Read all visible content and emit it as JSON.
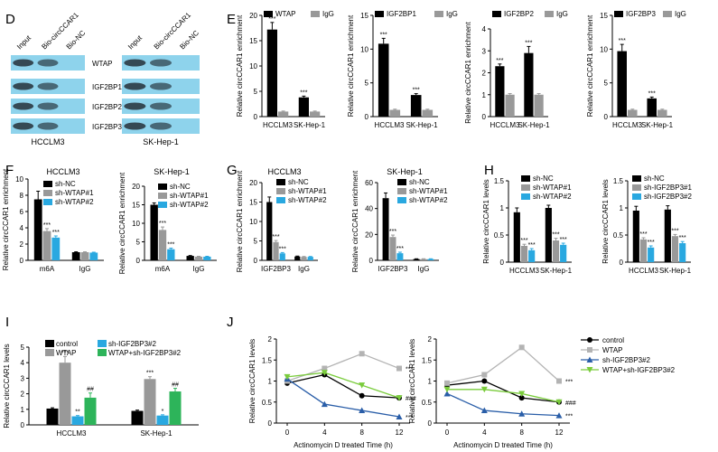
{
  "panels": [
    {
      "id": "D",
      "label": "D"
    },
    {
      "id": "E",
      "label": "E"
    },
    {
      "id": "F",
      "label": "F"
    },
    {
      "id": "G",
      "label": "G"
    },
    {
      "id": "H",
      "label": "H"
    },
    {
      "id": "I",
      "label": "I"
    },
    {
      "id": "J",
      "label": "J"
    }
  ],
  "western_blot": {
    "panel": "D",
    "blocks": [
      {
        "cell_line": "HCCLM3",
        "lanes": [
          "Input",
          "Bio-circCCAR1",
          "Bio-NC"
        ]
      },
      {
        "cell_line": "SK-Hep-1",
        "lanes": [
          "Input",
          "Bio-circCCAR1",
          "Bio-NC"
        ]
      }
    ],
    "proteins": [
      "WTAP",
      "IGF2BP1",
      "IGF2BP2",
      "IGF2BP3"
    ],
    "band_color": "#8ed3ec",
    "band_present": [
      [
        [
          true,
          true,
          false
        ],
        [
          true,
          true,
          false
        ]
      ],
      [
        [
          true,
          true,
          false
        ],
        [
          true,
          true,
          false
        ]
      ],
      [
        [
          true,
          true,
          false
        ],
        [
          true,
          true,
          false
        ]
      ],
      [
        [
          true,
          true,
          false
        ],
        [
          true,
          true,
          false
        ]
      ]
    ]
  },
  "colors": {
    "black": "#000000",
    "gray": "#999999",
    "light_gray": "#b3b3b3",
    "blue": "#29a8e0",
    "green": "#2db45a",
    "lime": "#7acc3c",
    "steel": "#2a5ea8"
  },
  "chart_data": [
    {
      "panel": "E",
      "type": "bar",
      "ylabel": "Relative circCCAR1 enrichment",
      "categories": [
        "HCCLM3",
        "SK-Hep-1"
      ],
      "ylim": [
        0,
        20
      ],
      "yticks": [
        0,
        5,
        10,
        15,
        20
      ],
      "series": [
        {
          "name": "WTAP",
          "color": "#000000",
          "values": [
            17.2,
            3.8
          ],
          "errors": [
            1.4,
            0.25
          ],
          "sig": [
            "***",
            "***"
          ]
        },
        {
          "name": "IgG",
          "color": "#999999",
          "values": [
            1.0,
            1.0
          ],
          "errors": [
            0.1,
            0.1
          ],
          "sig": [
            "",
            ""
          ]
        }
      ]
    },
    {
      "panel": "E",
      "type": "bar",
      "ylabel": "Relative circCCAR1 enrichment",
      "categories": [
        "HCCLM3",
        "SK-Hep-1"
      ],
      "ylim": [
        0,
        15
      ],
      "yticks": [
        0,
        5,
        10,
        15
      ],
      "series": [
        {
          "name": "IGF2BP1",
          "color": "#000000",
          "values": [
            10.8,
            3.2
          ],
          "errors": [
            0.8,
            0.2
          ],
          "sig": [
            "***",
            "***"
          ]
        },
        {
          "name": "IgG",
          "color": "#999999",
          "values": [
            1.0,
            1.0
          ],
          "errors": [
            0.1,
            0.1
          ],
          "sig": [
            "",
            ""
          ]
        }
      ]
    },
    {
      "panel": "E",
      "type": "bar",
      "ylabel": "Relative circCCAR1 enrichment",
      "categories": [
        "HCCLM3",
        "SK-Hep-1"
      ],
      "ylim": [
        0,
        4
      ],
      "yticks": [
        0,
        1,
        2,
        3,
        4
      ],
      "series": [
        {
          "name": "IGF2BP2",
          "color": "#000000",
          "values": [
            2.3,
            2.9
          ],
          "errors": [
            0.1,
            0.3
          ],
          "sig": [
            "***",
            "***"
          ]
        },
        {
          "name": "IgG",
          "color": "#999999",
          "values": [
            1.0,
            1.0
          ],
          "errors": [
            0.05,
            0.05
          ],
          "sig": [
            "",
            ""
          ]
        }
      ]
    },
    {
      "panel": "E",
      "type": "bar",
      "ylabel": "Relative circCCAR1 enrichment",
      "categories": [
        "HCCLM3",
        "SK-Hep-1"
      ],
      "ylim": [
        0,
        15
      ],
      "yticks": [
        0,
        5,
        10,
        15
      ],
      "series": [
        {
          "name": "IGF2BP3",
          "color": "#000000",
          "values": [
            9.7,
            2.7
          ],
          "errors": [
            1.0,
            0.2
          ],
          "sig": [
            "***",
            "***"
          ]
        },
        {
          "name": "IgG",
          "color": "#999999",
          "values": [
            1.0,
            1.0
          ],
          "errors": [
            0.1,
            0.1
          ],
          "sig": [
            "",
            ""
          ]
        }
      ]
    },
    {
      "panel": "F",
      "type": "bar",
      "title": "HCCLM3",
      "ylabel": "Relative circCCAR1 enrichment",
      "categories": [
        "m6A",
        "IgG"
      ],
      "ylim": [
        0,
        10
      ],
      "yticks": [
        0,
        2,
        4,
        6,
        8,
        10
      ],
      "series": [
        {
          "name": "sh-NC",
          "color": "#000000",
          "values": [
            7.5,
            1.0
          ],
          "errors": [
            1.0,
            0.05
          ],
          "sig": [
            "",
            ""
          ]
        },
        {
          "name": "sh-WTAP#1",
          "color": "#999999",
          "values": [
            3.6,
            1.0
          ],
          "errors": [
            0.3,
            0.05
          ],
          "sig": [
            "***",
            ""
          ]
        },
        {
          "name": "sh-WTAP#2",
          "color": "#29a8e0",
          "values": [
            2.8,
            0.95
          ],
          "errors": [
            0.2,
            0.05
          ],
          "sig": [
            "***",
            ""
          ]
        }
      ]
    },
    {
      "panel": "F",
      "type": "bar",
      "title": "SK-Hep-1",
      "ylabel": "Relative circCCAR1 enrichment",
      "categories": [
        "m6A",
        "IgG"
      ],
      "ylim": [
        0,
        20
      ],
      "yticks": [
        0,
        5,
        10,
        15,
        20
      ],
      "series": [
        {
          "name": "sh-NC",
          "color": "#000000",
          "values": [
            15.0,
            1.2
          ],
          "errors": [
            0.5,
            0.1
          ],
          "sig": [
            "",
            ""
          ]
        },
        {
          "name": "sh-WTAP#1",
          "color": "#999999",
          "values": [
            8.2,
            1.0
          ],
          "errors": [
            0.8,
            0.1
          ],
          "sig": [
            "***",
            ""
          ]
        },
        {
          "name": "sh-WTAP#2",
          "color": "#29a8e0",
          "values": [
            3.0,
            1.0
          ],
          "errors": [
            0.3,
            0.1
          ],
          "sig": [
            "***",
            ""
          ]
        }
      ]
    },
    {
      "panel": "G",
      "type": "bar",
      "title": "HCCLM3",
      "ylabel": "Relative circCCAR1 enrichment",
      "categories": [
        "IGF2BP3",
        "IgG"
      ],
      "ylim": [
        0,
        20
      ],
      "yticks": [
        0,
        5,
        10,
        15,
        20
      ],
      "series": [
        {
          "name": "sh-NC",
          "color": "#000000",
          "values": [
            15.0,
            1.0
          ],
          "errors": [
            1.3,
            0.1
          ],
          "sig": [
            "",
            ""
          ]
        },
        {
          "name": "sh-WTAP#1",
          "color": "#999999",
          "values": [
            4.7,
            0.9
          ],
          "errors": [
            0.4,
            0.1
          ],
          "sig": [
            "***",
            ""
          ]
        },
        {
          "name": "sh-WTAP#2",
          "color": "#29a8e0",
          "values": [
            1.8,
            0.9
          ],
          "errors": [
            0.2,
            0.1
          ],
          "sig": [
            "***",
            ""
          ]
        }
      ]
    },
    {
      "panel": "G",
      "type": "bar",
      "title": "SK-Hep-1",
      "ylabel": "Relative circCCAR1 enrichment",
      "categories": [
        "IGF2BP3",
        "IgG"
      ],
      "ylim": [
        0,
        60
      ],
      "yticks": [
        0,
        20,
        40,
        60
      ],
      "series": [
        {
          "name": "sh-NC",
          "color": "#000000",
          "values": [
            48.0,
            1.0
          ],
          "errors": [
            4.0,
            0.2
          ],
          "sig": [
            "",
            ""
          ]
        },
        {
          "name": "sh-WTAP#1",
          "color": "#999999",
          "values": [
            18.0,
            1.0
          ],
          "errors": [
            1.5,
            0.2
          ],
          "sig": [
            "***",
            ""
          ]
        },
        {
          "name": "sh-WTAP#2",
          "color": "#29a8e0",
          "values": [
            5.5,
            1.0
          ],
          "errors": [
            0.8,
            0.2
          ],
          "sig": [
            "***",
            ""
          ]
        }
      ]
    },
    {
      "panel": "H",
      "type": "bar",
      "ylabel": "Relative circCCAR1 levels",
      "categories": [
        "HCCLM3",
        "SK-Hep-1"
      ],
      "ylim": [
        0,
        1.5
      ],
      "yticks": [
        0,
        0.5,
        1.0,
        1.5
      ],
      "series": [
        {
          "name": "sh-NC",
          "color": "#000000",
          "values": [
            0.92,
            1.0
          ],
          "errors": [
            0.08,
            0.05
          ],
          "sig": [
            "",
            ""
          ]
        },
        {
          "name": "sh-WTAP#1",
          "color": "#999999",
          "values": [
            0.3,
            0.4
          ],
          "errors": [
            0.03,
            0.04
          ],
          "sig": [
            "***",
            "***"
          ]
        },
        {
          "name": "sh-WTAP#2",
          "color": "#29a8e0",
          "values": [
            0.22,
            0.32
          ],
          "errors": [
            0.03,
            0.03
          ],
          "sig": [
            "***",
            "***"
          ]
        }
      ]
    },
    {
      "panel": "H",
      "type": "bar",
      "ylabel": "Relative circCCAR1 levels",
      "categories": [
        "HCCLM3",
        "SK-Hep-1"
      ],
      "ylim": [
        0,
        1.5
      ],
      "yticks": [
        0,
        0.5,
        1.0,
        1.5
      ],
      "series": [
        {
          "name": "sh-NC",
          "color": "#000000",
          "values": [
            0.95,
            0.97
          ],
          "errors": [
            0.08,
            0.07
          ],
          "sig": [
            "",
            ""
          ]
        },
        {
          "name": "sh-IGF2BP3#1",
          "color": "#999999",
          "values": [
            0.42,
            0.48
          ],
          "errors": [
            0.03,
            0.03
          ],
          "sig": [
            "***",
            "***"
          ]
        },
        {
          "name": "sh-IGF2BP3#2",
          "color": "#29a8e0",
          "values": [
            0.27,
            0.35
          ],
          "errors": [
            0.03,
            0.03
          ],
          "sig": [
            "***",
            "***"
          ]
        }
      ]
    },
    {
      "panel": "I",
      "type": "bar",
      "ylabel": "Relative circCCAR1 levels",
      "categories": [
        "HCCLM3",
        "SK-Hep-1"
      ],
      "ylim": [
        0,
        5
      ],
      "yticks": [
        0,
        1,
        2,
        3,
        4,
        5
      ],
      "series": [
        {
          "name": "control",
          "color": "#000000",
          "values": [
            1.05,
            0.9
          ],
          "errors": [
            0.05,
            0.05
          ],
          "sig": [
            "",
            ""
          ]
        },
        {
          "name": "WTAP",
          "color": "#999999",
          "values": [
            4.0,
            2.95
          ],
          "errors": [
            0.4,
            0.15
          ],
          "sig": [
            "***",
            "***"
          ]
        },
        {
          "name": "sh-IGF2BP3#2",
          "color": "#29a8e0",
          "values": [
            0.55,
            0.6
          ],
          "errors": [
            0.05,
            0.05
          ],
          "sig": [
            "**",
            "*"
          ]
        },
        {
          "name": "WTAP+sh-IGF2BP3#2",
          "color": "#2db45a",
          "values": [
            1.75,
            2.15
          ],
          "errors": [
            0.3,
            0.2
          ],
          "sig": [
            "##",
            "##"
          ]
        }
      ]
    },
    {
      "panel": "J",
      "type": "line",
      "ylabel": "Relative circCCAR1 levels",
      "xlabel": "Actinomycin D treated Time (h)",
      "x": [
        0,
        4,
        8,
        12
      ],
      "ylim": [
        0,
        2.0
      ],
      "yticks": [
        0,
        0.5,
        1.0,
        1.5,
        2.0
      ],
      "series": [
        {
          "name": "control",
          "color": "#000000",
          "marker": "circle",
          "values": [
            0.95,
            1.15,
            0.65,
            0.6
          ],
          "sig": "###"
        },
        {
          "name": "WTAP",
          "color": "#b3b3b3",
          "marker": "square",
          "values": [
            1.0,
            1.3,
            1.65,
            1.3
          ],
          "sig": "***"
        },
        {
          "name": "sh-IGF2BP3#2",
          "color": "#2a5ea8",
          "marker": "triangle",
          "values": [
            1.05,
            0.45,
            0.3,
            0.15
          ],
          "sig": "***"
        },
        {
          "name": "WTAP+sh-IGF2BP3#2",
          "color": "#7acc3c",
          "marker": "invtriangle",
          "values": [
            1.1,
            1.2,
            0.9,
            0.6
          ],
          "sig": ""
        }
      ]
    },
    {
      "panel": "J",
      "type": "line",
      "ylabel": "Relative circCCAR1 levels",
      "xlabel": "Actinomycin D treated Time (h)",
      "x": [
        0,
        4,
        8,
        12
      ],
      "ylim": [
        0,
        2.0
      ],
      "yticks": [
        0,
        0.5,
        1.0,
        1.5,
        2.0
      ],
      "series": [
        {
          "name": "control",
          "color": "#000000",
          "marker": "circle",
          "values": [
            0.9,
            1.0,
            0.6,
            0.5
          ],
          "sig": "###"
        },
        {
          "name": "WTAP",
          "color": "#b3b3b3",
          "marker": "square",
          "values": [
            0.95,
            1.15,
            1.8,
            1.0
          ],
          "sig": "***"
        },
        {
          "name": "sh-IGF2BP3#2",
          "color": "#2a5ea8",
          "marker": "triangle",
          "values": [
            0.7,
            0.3,
            0.22,
            0.18
          ],
          "sig": "***"
        },
        {
          "name": "WTAP+sh-IGF2BP3#2",
          "color": "#7acc3c",
          "marker": "invtriangle",
          "values": [
            0.8,
            0.8,
            0.7,
            0.5
          ],
          "sig": ""
        }
      ]
    }
  ],
  "legend_I": [
    "control",
    "WTAP",
    "sh-IGF2BP3#2",
    "WTAP+sh-IGF2BP3#2"
  ],
  "legend_J": [
    "control",
    "WTAP",
    "sh-IGF2BP3#2",
    "WTAP+sh-IGF2BP3#2"
  ]
}
